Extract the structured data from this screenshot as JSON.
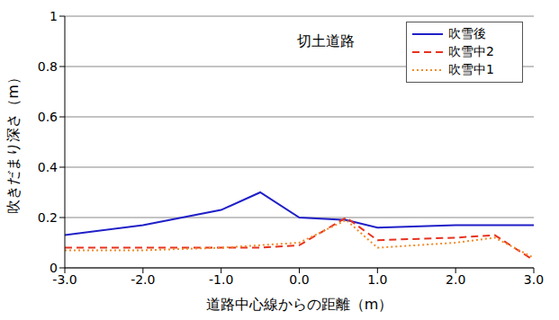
{
  "chart_data": {
    "type": "line",
    "annotation": "切土道路",
    "x_label": "道路中心線からの距離（m）",
    "y_label": "吹きだまり深さ（m）",
    "x": [
      -3.0,
      -2.0,
      -1.0,
      -0.5,
      0.0,
      0.6,
      1.0,
      2.0,
      2.5,
      3.0
    ],
    "series": [
      {
        "name": "吹雪後",
        "color": "#1f1fc8",
        "line_style": "solid",
        "values": [
          0.13,
          0.17,
          0.23,
          0.3,
          0.2,
          0.19,
          0.16,
          0.17,
          0.17,
          0.17
        ]
      },
      {
        "name": "吹雪中2",
        "color": "#e8321e",
        "line_style": "dashed",
        "values": [
          0.08,
          0.08,
          0.08,
          0.08,
          0.09,
          0.2,
          0.11,
          0.12,
          0.13,
          0.03
        ]
      },
      {
        "name": "吹雪中1",
        "color": "#f08c28",
        "line_style": "dotted",
        "values": [
          0.07,
          0.07,
          0.08,
          0.09,
          0.1,
          0.19,
          0.08,
          0.1,
          0.12,
          0.04
        ]
      }
    ],
    "xlim": [
      -3.0,
      3.0
    ],
    "xticks": [
      {
        "value": -3,
        "label": "-3.0"
      },
      {
        "value": -2,
        "label": "-2.0"
      },
      {
        "value": -1,
        "label": "-1.0"
      },
      {
        "value": 0,
        "label": "0.0"
      },
      {
        "value": 1,
        "label": "1.0"
      },
      {
        "value": 2,
        "label": "2.0"
      },
      {
        "value": 3,
        "label": "3.0"
      }
    ],
    "ylim": [
      0,
      1
    ],
    "yticks": [
      0,
      0.2,
      0.4,
      0.6,
      0.8,
      1
    ],
    "grid": true,
    "legend": "top-right"
  }
}
